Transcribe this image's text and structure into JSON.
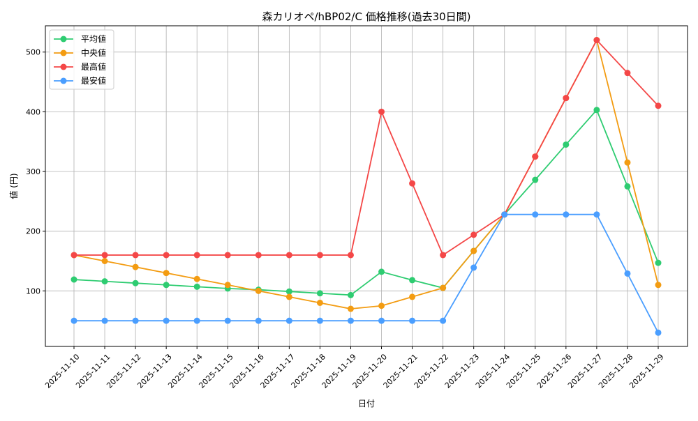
{
  "chart_data": {
    "type": "line",
    "title": "森カリオペ/hBP02/C 価格推移(過去30日間)",
    "xlabel": "日付",
    "ylabel": "値 (円)",
    "ylim": [
      7,
      544
    ],
    "yticks": [
      100,
      200,
      300,
      400,
      500
    ],
    "grid": true,
    "legend_position": "top-left",
    "x": [
      "2025-11-10",
      "2025-11-11",
      "2025-11-12",
      "2025-11-13",
      "2025-11-14",
      "2025-11-15",
      "2025-11-16",
      "2025-11-17",
      "2025-11-18",
      "2025-11-19",
      "2025-11-20",
      "2025-11-21",
      "2025-11-22",
      "2025-11-23",
      "2025-11-24",
      "2025-11-25",
      "2025-11-26",
      "2025-11-27",
      "2025-11-28",
      "2025-11-29"
    ],
    "series": [
      {
        "name": "平均値",
        "color": "#2ecc71",
        "values": [
          119,
          116,
          113,
          110,
          107,
          104,
          102,
          99,
          96,
          93,
          132,
          118,
          105,
          167,
          228,
          286,
          345,
          403,
          275,
          147
        ]
      },
      {
        "name": "中央値",
        "color": "#f39c12",
        "values": [
          160,
          150,
          140,
          130,
          120,
          110,
          100,
          90,
          80,
          70,
          75,
          90,
          105,
          167,
          228,
          325,
          423,
          520,
          315,
          110
        ]
      },
      {
        "name": "最高値",
        "color": "#f44747",
        "values": [
          160,
          160,
          160,
          160,
          160,
          160,
          160,
          160,
          160,
          160,
          400,
          280,
          160,
          194,
          228,
          325,
          423,
          520,
          465,
          410
        ]
      },
      {
        "name": "最安値",
        "color": "#4a9eff",
        "values": [
          50,
          50,
          50,
          50,
          50,
          50,
          50,
          50,
          50,
          50,
          50,
          50,
          50,
          139,
          228,
          228,
          228,
          228,
          129,
          30
        ]
      }
    ]
  }
}
